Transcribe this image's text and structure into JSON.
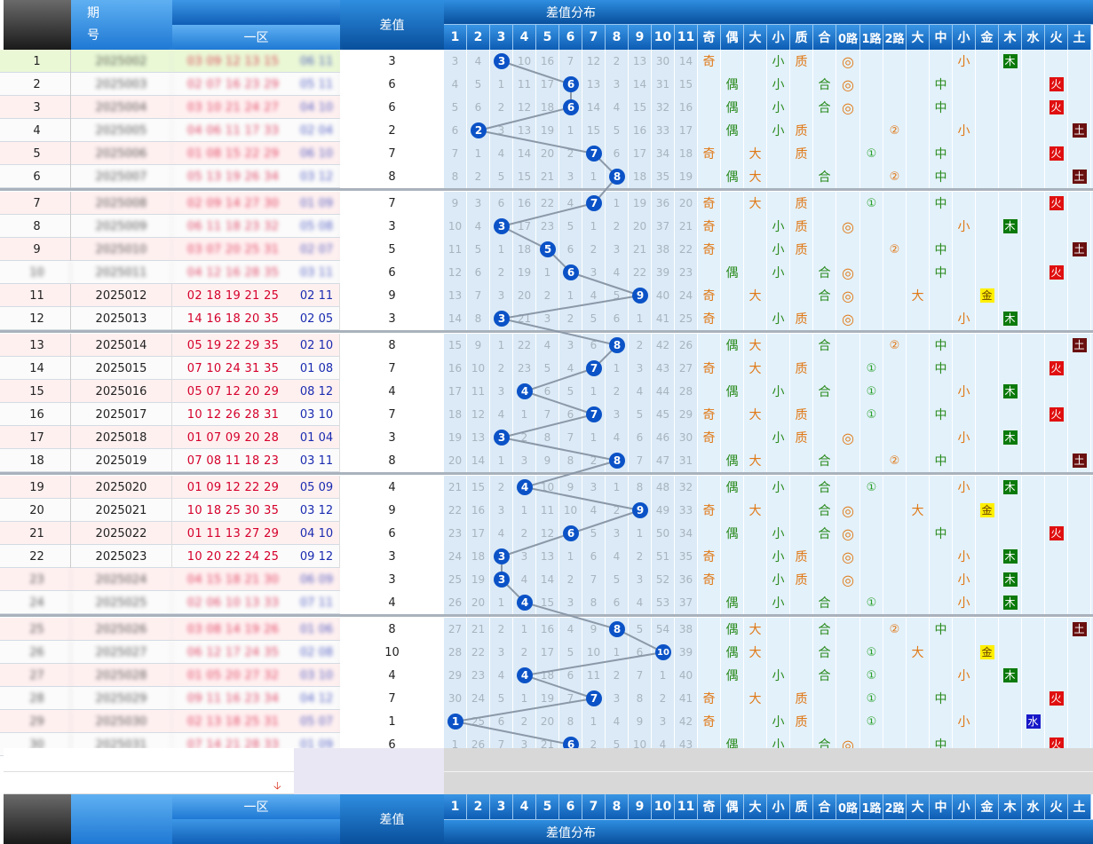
{
  "header": {
    "period_label_1": "期",
    "period_label_2": "号",
    "zone1_label": "一区",
    "diff_label": "差值",
    "dist_label": "差值分布",
    "dist_cols": [
      "1",
      "2",
      "3",
      "4",
      "5",
      "6",
      "7",
      "8",
      "9",
      "10",
      "11"
    ],
    "attr_cols": [
      "奇",
      "偶",
      "大",
      "小",
      "质",
      "合",
      "0路",
      "1路",
      "2路",
      "大",
      "中",
      "小",
      "金",
      "木",
      "水",
      "火",
      "土"
    ]
  },
  "rows": [
    {
      "seq": "1",
      "period": "2025002",
      "red": "03 09 12 13 15",
      "blue": "06 11",
      "diff": "3",
      "dist": [
        "3",
        "4",
        "3",
        "10",
        "16",
        "7",
        "12",
        "2",
        "13",
        "30",
        "14"
      ],
      "odd": "奇",
      "even": "",
      "big": "",
      "small": "小",
      "prime": "质",
      "comp": "",
      "r0": "◎",
      "r1": "",
      "r2": "",
      "tb": "",
      "tm": "",
      "ts": "小",
      "el": "木"
    },
    {
      "seq": "2",
      "period": "2025003",
      "red": "02 07 16 23 29",
      "blue": "05 11",
      "diff": "6",
      "dist": [
        "4",
        "5",
        "1",
        "11",
        "17",
        "6",
        "13",
        "3",
        "14",
        "31",
        "15"
      ],
      "odd": "",
      "even": "偶",
      "big": "",
      "small": "小",
      "prime": "",
      "comp": "合",
      "r0": "◎",
      "r1": "",
      "r2": "",
      "tb": "",
      "tm": "中",
      "ts": "",
      "el": "火"
    },
    {
      "seq": "3",
      "period": "2025004",
      "red": "03 10 21 24 27",
      "blue": "04 10",
      "diff": "6",
      "dist": [
        "5",
        "6",
        "2",
        "12",
        "18",
        "6",
        "14",
        "4",
        "15",
        "32",
        "16"
      ],
      "odd": "",
      "even": "偶",
      "big": "",
      "small": "小",
      "prime": "",
      "comp": "合",
      "r0": "◎",
      "r1": "",
      "r2": "",
      "tb": "",
      "tm": "中",
      "ts": "",
      "el": "火"
    },
    {
      "seq": "4",
      "period": "2025005",
      "red": "04 06 11 17 33",
      "blue": "02 04",
      "diff": "2",
      "dist": [
        "6",
        "7",
        "3",
        "13",
        "19",
        "1",
        "15",
        "5",
        "16",
        "33",
        "17"
      ],
      "odd": "",
      "even": "偶",
      "big": "",
      "small": "小",
      "prime": "质",
      "comp": "",
      "r0": "",
      "r1": "",
      "r2": "②",
      "tb": "",
      "tm": "",
      "ts": "小",
      "el": "土"
    },
    {
      "seq": "5",
      "period": "2025006",
      "red": "01 08 15 22 29",
      "blue": "06 10",
      "diff": "7",
      "dist": [
        "7",
        "1",
        "4",
        "14",
        "20",
        "2",
        "7",
        "6",
        "17",
        "34",
        "18"
      ],
      "odd": "奇",
      "even": "",
      "big": "大",
      "small": "",
      "prime": "质",
      "comp": "",
      "r0": "",
      "r1": "①",
      "r2": "",
      "tb": "",
      "tm": "中",
      "ts": "",
      "el": "火"
    },
    {
      "seq": "6",
      "period": "2025007",
      "red": "05 13 19 26 34",
      "blue": "03 12",
      "diff": "8",
      "dist": [
        "8",
        "2",
        "5",
        "15",
        "21",
        "3",
        "1",
        "8",
        "18",
        "35",
        "19"
      ],
      "odd": "",
      "even": "偶",
      "big": "大",
      "small": "",
      "prime": "",
      "comp": "合",
      "r0": "",
      "r1": "",
      "r2": "②",
      "tb": "",
      "tm": "中",
      "ts": "",
      "el": "土"
    },
    {
      "seq": "7",
      "period": "2025008",
      "red": "02 09 14 27 30",
      "blue": "01 09",
      "diff": "7",
      "dist": [
        "9",
        "3",
        "6",
        "16",
        "22",
        "4",
        "7",
        "1",
        "19",
        "36",
        "20"
      ],
      "odd": "奇",
      "even": "",
      "big": "大",
      "small": "",
      "prime": "质",
      "comp": "",
      "r0": "",
      "r1": "①",
      "r2": "",
      "tb": "",
      "tm": "中",
      "ts": "",
      "el": "火"
    },
    {
      "seq": "8",
      "period": "2025009",
      "red": "06 11 18 23 32",
      "blue": "05 08",
      "diff": "3",
      "dist": [
        "10",
        "4",
        "3",
        "17",
        "23",
        "5",
        "1",
        "2",
        "20",
        "37",
        "21"
      ],
      "odd": "奇",
      "even": "",
      "big": "",
      "small": "小",
      "prime": "质",
      "comp": "",
      "r0": "◎",
      "r1": "",
      "r2": "",
      "tb": "",
      "tm": "",
      "ts": "小",
      "el": "木"
    },
    {
      "seq": "9",
      "period": "2025010",
      "red": "03 07 20 25 31",
      "blue": "02 07",
      "diff": "5",
      "dist": [
        "11",
        "5",
        "1",
        "18",
        "5",
        "6",
        "2",
        "3",
        "21",
        "38",
        "22"
      ],
      "odd": "奇",
      "even": "",
      "big": "",
      "small": "小",
      "prime": "质",
      "comp": "",
      "r0": "",
      "r1": "",
      "r2": "②",
      "tb": "",
      "tm": "中",
      "ts": "",
      "el": "土"
    },
    {
      "seq": "10",
      "period": "2025011",
      "red": "04 12 16 28 35",
      "blue": "03 11",
      "diff": "6",
      "dist": [
        "12",
        "6",
        "2",
        "19",
        "1",
        "6",
        "3",
        "4",
        "22",
        "39",
        "23"
      ],
      "odd": "",
      "even": "偶",
      "big": "",
      "small": "小",
      "prime": "",
      "comp": "合",
      "r0": "◎",
      "r1": "",
      "r2": "",
      "tb": "",
      "tm": "中",
      "ts": "",
      "el": "火"
    },
    {
      "seq": "11",
      "period": "2025012",
      "red": "02 18 19 21 25",
      "blue": "02 11",
      "diff": "9",
      "dist": [
        "13",
        "7",
        "3",
        "20",
        "2",
        "1",
        "4",
        "5",
        "9",
        "40",
        "24"
      ],
      "odd": "奇",
      "even": "",
      "big": "大",
      "small": "",
      "prime": "",
      "comp": "合",
      "r0": "◎",
      "r1": "",
      "r2": "",
      "tb": "大",
      "tm": "",
      "ts": "",
      "el": "金"
    },
    {
      "seq": "12",
      "period": "2025013",
      "red": "14 16 18 20 35",
      "blue": "02 05",
      "diff": "3",
      "dist": [
        "14",
        "8",
        "3",
        "21",
        "3",
        "2",
        "5",
        "6",
        "1",
        "41",
        "25"
      ],
      "odd": "奇",
      "even": "",
      "big": "",
      "small": "小",
      "prime": "质",
      "comp": "",
      "r0": "◎",
      "r1": "",
      "r2": "",
      "tb": "",
      "tm": "",
      "ts": "小",
      "el": "木"
    },
    {
      "seq": "13",
      "period": "2025014",
      "red": "05 19 22 29 35",
      "blue": "02 10",
      "diff": "8",
      "dist": [
        "15",
        "9",
        "1",
        "22",
        "4",
        "3",
        "6",
        "8",
        "2",
        "42",
        "26"
      ],
      "odd": "",
      "even": "偶",
      "big": "大",
      "small": "",
      "prime": "",
      "comp": "合",
      "r0": "",
      "r1": "",
      "r2": "②",
      "tb": "",
      "tm": "中",
      "ts": "",
      "el": "土"
    },
    {
      "seq": "14",
      "period": "2025015",
      "red": "07 10 24 31 35",
      "blue": "01 08",
      "diff": "7",
      "dist": [
        "16",
        "10",
        "2",
        "23",
        "5",
        "4",
        "7",
        "1",
        "3",
        "43",
        "27"
      ],
      "odd": "奇",
      "even": "",
      "big": "大",
      "small": "",
      "prime": "质",
      "comp": "",
      "r0": "",
      "r1": "①",
      "r2": "",
      "tb": "",
      "tm": "中",
      "ts": "",
      "el": "火"
    },
    {
      "seq": "15",
      "period": "2025016",
      "red": "05 07 12 20 29",
      "blue": "08 12",
      "diff": "4",
      "dist": [
        "17",
        "11",
        "3",
        "4",
        "6",
        "5",
        "1",
        "2",
        "4",
        "44",
        "28"
      ],
      "odd": "",
      "even": "偶",
      "big": "",
      "small": "小",
      "prime": "",
      "comp": "合",
      "r0": "",
      "r1": "①",
      "r2": "",
      "tb": "",
      "tm": "",
      "ts": "小",
      "el": "木"
    },
    {
      "seq": "16",
      "period": "2025017",
      "red": "10 12 26 28 31",
      "blue": "03 10",
      "diff": "7",
      "dist": [
        "18",
        "12",
        "4",
        "1",
        "7",
        "6",
        "7",
        "3",
        "5",
        "45",
        "29"
      ],
      "odd": "奇",
      "even": "",
      "big": "大",
      "small": "",
      "prime": "质",
      "comp": "",
      "r0": "",
      "r1": "①",
      "r2": "",
      "tb": "",
      "tm": "中",
      "ts": "",
      "el": "火"
    },
    {
      "seq": "17",
      "period": "2025018",
      "red": "01 07 09 20 28",
      "blue": "01 04",
      "diff": "3",
      "dist": [
        "19",
        "13",
        "3",
        "2",
        "8",
        "7",
        "1",
        "4",
        "6",
        "46",
        "30"
      ],
      "odd": "奇",
      "even": "",
      "big": "",
      "small": "小",
      "prime": "质",
      "comp": "",
      "r0": "◎",
      "r1": "",
      "r2": "",
      "tb": "",
      "tm": "",
      "ts": "小",
      "el": "木"
    },
    {
      "seq": "18",
      "period": "2025019",
      "red": "07 08 11 18 23",
      "blue": "03 11",
      "diff": "8",
      "dist": [
        "20",
        "14",
        "1",
        "3",
        "9",
        "8",
        "2",
        "8",
        "7",
        "47",
        "31"
      ],
      "odd": "",
      "even": "偶",
      "big": "大",
      "small": "",
      "prime": "",
      "comp": "合",
      "r0": "",
      "r1": "",
      "r2": "②",
      "tb": "",
      "tm": "中",
      "ts": "",
      "el": "土"
    },
    {
      "seq": "19",
      "period": "2025020",
      "red": "01 09 12 22 29",
      "blue": "05 09",
      "diff": "4",
      "dist": [
        "21",
        "15",
        "2",
        "4",
        "10",
        "9",
        "3",
        "1",
        "8",
        "48",
        "32"
      ],
      "odd": "",
      "even": "偶",
      "big": "",
      "small": "小",
      "prime": "",
      "comp": "合",
      "r0": "",
      "r1": "①",
      "r2": "",
      "tb": "",
      "tm": "",
      "ts": "小",
      "el": "木"
    },
    {
      "seq": "20",
      "period": "2025021",
      "red": "10 18 25 30 35",
      "blue": "03 12",
      "diff": "9",
      "dist": [
        "22",
        "16",
        "3",
        "1",
        "11",
        "10",
        "4",
        "2",
        "9",
        "49",
        "33"
      ],
      "odd": "奇",
      "even": "",
      "big": "大",
      "small": "",
      "prime": "",
      "comp": "合",
      "r0": "◎",
      "r1": "",
      "r2": "",
      "tb": "大",
      "tm": "",
      "ts": "",
      "el": "金"
    },
    {
      "seq": "21",
      "period": "2025022",
      "red": "01 11 13 27 29",
      "blue": "04 10",
      "diff": "6",
      "dist": [
        "23",
        "17",
        "4",
        "2",
        "12",
        "6",
        "5",
        "3",
        "1",
        "50",
        "34"
      ],
      "odd": "",
      "even": "偶",
      "big": "",
      "small": "小",
      "prime": "",
      "comp": "合",
      "r0": "◎",
      "r1": "",
      "r2": "",
      "tb": "",
      "tm": "中",
      "ts": "",
      "el": "火"
    },
    {
      "seq": "22",
      "period": "2025023",
      "red": "10 20 22 24 25",
      "blue": "09 12",
      "diff": "3",
      "dist": [
        "24",
        "18",
        "3",
        "3",
        "13",
        "1",
        "6",
        "4",
        "2",
        "51",
        "35"
      ],
      "odd": "奇",
      "even": "",
      "big": "",
      "small": "小",
      "prime": "质",
      "comp": "",
      "r0": "◎",
      "r1": "",
      "r2": "",
      "tb": "",
      "tm": "",
      "ts": "小",
      "el": "木"
    },
    {
      "seq": "23",
      "period": "2025024",
      "red": "04 15 18 21 30",
      "blue": "06 09",
      "diff": "3",
      "dist": [
        "25",
        "19",
        "3",
        "4",
        "14",
        "2",
        "7",
        "5",
        "3",
        "52",
        "36"
      ],
      "odd": "奇",
      "even": "",
      "big": "",
      "small": "小",
      "prime": "质",
      "comp": "",
      "r0": "◎",
      "r1": "",
      "r2": "",
      "tb": "",
      "tm": "",
      "ts": "小",
      "el": "木"
    },
    {
      "seq": "24",
      "period": "2025025",
      "red": "02 06 10 13 33",
      "blue": "07 11",
      "diff": "4",
      "dist": [
        "26",
        "20",
        "1",
        "4",
        "15",
        "3",
        "8",
        "6",
        "4",
        "53",
        "37"
      ],
      "odd": "",
      "even": "偶",
      "big": "",
      "small": "小",
      "prime": "",
      "comp": "合",
      "r0": "",
      "r1": "①",
      "r2": "",
      "tb": "",
      "tm": "",
      "ts": "小",
      "el": "木"
    },
    {
      "seq": "25",
      "period": "2025026",
      "red": "03 08 14 19 26",
      "blue": "01 06",
      "diff": "8",
      "dist": [
        "27",
        "21",
        "2",
        "1",
        "16",
        "4",
        "9",
        "8",
        "5",
        "54",
        "38"
      ],
      "odd": "",
      "even": "偶",
      "big": "大",
      "small": "",
      "prime": "",
      "comp": "合",
      "r0": "",
      "r1": "",
      "r2": "②",
      "tb": "",
      "tm": "中",
      "ts": "",
      "el": "土"
    },
    {
      "seq": "26",
      "period": "2025027",
      "red": "06 12 17 24 35",
      "blue": "02 08",
      "diff": "10",
      "dist": [
        "28",
        "22",
        "3",
        "2",
        "17",
        "5",
        "10",
        "1",
        "6",
        "10",
        "39"
      ],
      "odd": "",
      "even": "偶",
      "big": "大",
      "small": "",
      "prime": "",
      "comp": "合",
      "r0": "",
      "r1": "①",
      "r2": "",
      "tb": "大",
      "tm": "",
      "ts": "",
      "el": "金"
    },
    {
      "seq": "27",
      "period": "2025028",
      "red": "01 05 20 27 32",
      "blue": "03 10",
      "diff": "4",
      "dist": [
        "29",
        "23",
        "4",
        "4",
        "18",
        "6",
        "11",
        "2",
        "7",
        "1",
        "40"
      ],
      "odd": "",
      "even": "偶",
      "big": "",
      "small": "小",
      "prime": "",
      "comp": "合",
      "r0": "",
      "r1": "①",
      "r2": "",
      "tb": "",
      "tm": "",
      "ts": "小",
      "el": "木"
    },
    {
      "seq": "28",
      "period": "2025029",
      "red": "09 11 16 23 34",
      "blue": "04 12",
      "diff": "7",
      "dist": [
        "30",
        "24",
        "5",
        "1",
        "19",
        "7",
        "7",
        "3",
        "8",
        "2",
        "41"
      ],
      "odd": "奇",
      "even": "",
      "big": "大",
      "small": "",
      "prime": "质",
      "comp": "",
      "r0": "",
      "r1": "①",
      "r2": "",
      "tb": "",
      "tm": "中",
      "ts": "",
      "el": "火"
    },
    {
      "seq": "29",
      "period": "2025030",
      "red": "02 13 18 25 31",
      "blue": "05 07",
      "diff": "1",
      "dist": [
        "1",
        "25",
        "6",
        "2",
        "20",
        "8",
        "1",
        "4",
        "9",
        "3",
        "42"
      ],
      "odd": "奇",
      "even": "",
      "big": "",
      "small": "小",
      "prime": "质",
      "comp": "",
      "r0": "",
      "r1": "①",
      "r2": "",
      "tb": "",
      "tm": "",
      "ts": "小",
      "el": "水"
    },
    {
      "seq": "30",
      "period": "2025031",
      "red": "07 14 21 28 33",
      "blue": "01 09",
      "diff": "6",
      "dist": [
        "1",
        "26",
        "7",
        "3",
        "21",
        "6",
        "2",
        "5",
        "10",
        "4",
        "43"
      ],
      "odd": "",
      "even": "偶",
      "big": "",
      "small": "小",
      "prime": "",
      "comp": "合",
      "r0": "◎",
      "r1": "",
      "r2": "",
      "tb": "",
      "tm": "中",
      "ts": "",
      "el": "火"
    }
  ],
  "colors": {
    "ball": "#0b52c7",
    "trend_line": "#8b98a8",
    "dist_bg": "#dbeaf6",
    "attr_bg": "#e3f1fb",
    "red_text": "#d5002b",
    "blue_text": "#1a2bb0"
  },
  "footer": {
    "arrow_icon": "down-arrow-icon"
  }
}
